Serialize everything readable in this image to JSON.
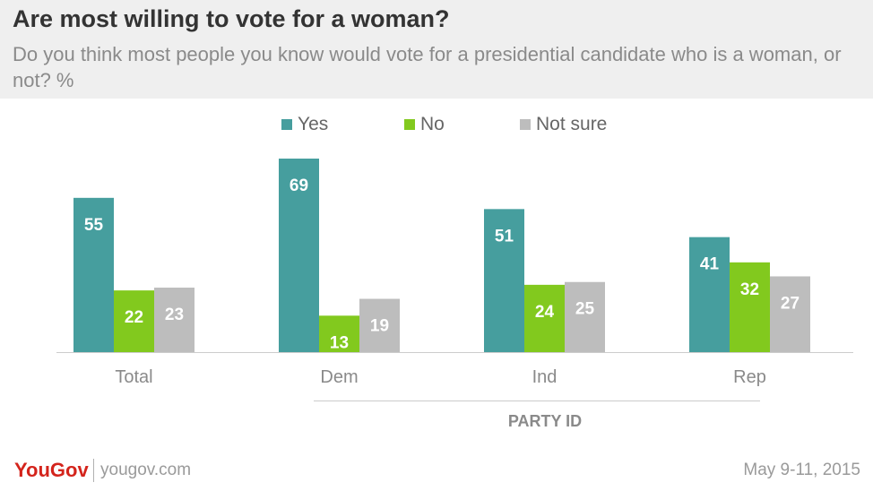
{
  "header": {
    "title": "Are most willing to vote for a woman?",
    "subtitle": "Do you think most people you know would vote for a presidential candidate who is a woman, or not? %"
  },
  "footer": {
    "logo": "YouGov",
    "site": "yougov.com",
    "date": "May 9-11, 2015"
  },
  "colors": {
    "yes": "#469e9e",
    "no": "#82c91e",
    "not_sure": "#bdbdbd"
  },
  "chart_data": {
    "type": "bar",
    "title": "Are most willing to vote for a woman?",
    "categories": [
      "Total",
      "Dem",
      "Ind",
      "Rep"
    ],
    "series": [
      {
        "name": "Yes",
        "values": [
          55,
          69,
          51,
          41
        ]
      },
      {
        "name": "No",
        "values": [
          22,
          13,
          24,
          32
        ]
      },
      {
        "name": "Not sure",
        "values": [
          23,
          19,
          25,
          27
        ]
      }
    ],
    "group_label": "PARTY ID",
    "ylim": [
      0,
      69
    ],
    "grid": false,
    "legend": "top-center"
  }
}
